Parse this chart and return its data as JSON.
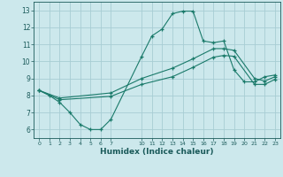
{
  "xlabel": "Humidex (Indice chaleur)",
  "bg_color": "#cce8ec",
  "grid_color": "#a8cdd4",
  "line_color": "#1a7a6a",
  "xlim": [
    -0.5,
    23.5
  ],
  "ylim": [
    5.5,
    13.5
  ],
  "xtick_positions": [
    0,
    1,
    2,
    3,
    4,
    5,
    6,
    7,
    10,
    11,
    12,
    13,
    14,
    15,
    16,
    17,
    18,
    19,
    20,
    21,
    22,
    23
  ],
  "xtick_labels": [
    "0",
    "1",
    "2",
    "3",
    "4",
    "5",
    "6",
    "7",
    "10",
    "11",
    "12",
    "13",
    "14",
    "15",
    "16",
    "17",
    "18",
    "19",
    "20",
    "21",
    "22",
    "23"
  ],
  "yticks": [
    6,
    7,
    8,
    9,
    10,
    11,
    12,
    13
  ],
  "line1_x": [
    0,
    1,
    2,
    3,
    4,
    5,
    6,
    7,
    10,
    11,
    12,
    13,
    14,
    15,
    16,
    17,
    18,
    19,
    20,
    21,
    22,
    23
  ],
  "line1_y": [
    8.3,
    8.0,
    7.6,
    7.0,
    6.3,
    6.0,
    6.0,
    6.6,
    10.3,
    11.5,
    11.9,
    12.8,
    12.95,
    12.95,
    11.2,
    11.1,
    11.2,
    9.5,
    8.8,
    8.8,
    9.1,
    9.2
  ],
  "line2_x": [
    0,
    2,
    7,
    10,
    13,
    15,
    17,
    18,
    19,
    21,
    22,
    23
  ],
  "line2_y": [
    8.3,
    7.85,
    8.15,
    9.0,
    9.6,
    10.15,
    10.75,
    10.75,
    10.65,
    9.0,
    8.85,
    9.1
  ],
  "line3_x": [
    0,
    2,
    7,
    10,
    13,
    15,
    17,
    18,
    19,
    21,
    22,
    23
  ],
  "line3_y": [
    8.3,
    7.75,
    7.95,
    8.65,
    9.1,
    9.65,
    10.25,
    10.35,
    10.3,
    8.65,
    8.65,
    8.95
  ]
}
